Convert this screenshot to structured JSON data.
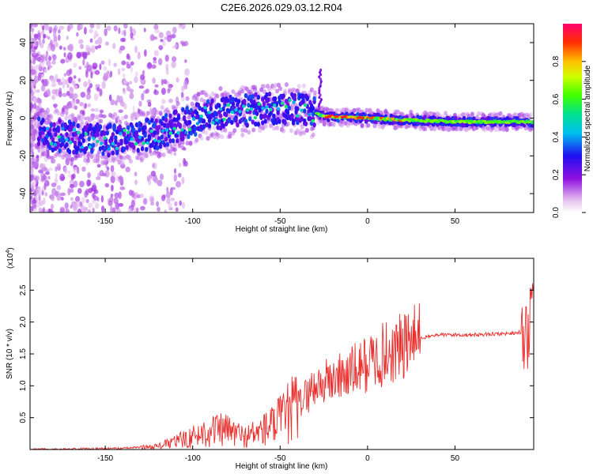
{
  "title": "C2E6.2026.029.03.12.R04",
  "chart_data": [
    {
      "type": "heatmap",
      "xlabel": "Height of straight line (km)",
      "ylabel": "Frequency (Hz)",
      "xlim": [
        -193,
        95
      ],
      "ylim": [
        -50,
        50
      ],
      "xticks": [
        -150,
        -100,
        -50,
        0,
        50
      ],
      "yticks": [
        -40,
        -20,
        0,
        20,
        40
      ],
      "colorbar": {
        "label": "Normalized spectral amplitude",
        "range": [
          0,
          1
        ],
        "ticks": [
          0.0,
          0.2,
          0.4,
          0.6,
          0.8
        ],
        "tick_labels": [
          "0.0",
          "0.2",
          "0.4",
          "0.6",
          "0.8"
        ]
      },
      "ridge": {
        "description_points": [
          {
            "x": -190,
            "y": -8
          },
          {
            "x": -150,
            "y": -12
          },
          {
            "x": -120,
            "y": -8
          },
          {
            "x": -90,
            "y": 2
          },
          {
            "x": -60,
            "y": 5
          },
          {
            "x": -40,
            "y": 5
          },
          {
            "x": -25,
            "y": 1
          },
          {
            "x": 0,
            "y": 0
          },
          {
            "x": 20,
            "y": -1
          },
          {
            "x": 50,
            "y": -2
          },
          {
            "x": 80,
            "y": -2
          },
          {
            "x": 95,
            "y": -2
          }
        ]
      }
    },
    {
      "type": "line",
      "xlabel": "Height of straight line (km)",
      "ylabel": "SNR (10 * v/v)",
      "scale_label": "(x10",
      "scale_exponent": "4",
      "scale_suffix": ")",
      "xlim": [
        -193,
        95
      ],
      "ylim": [
        0,
        3.0
      ],
      "xticks": [
        -150,
        -100,
        -50,
        0,
        50
      ],
      "yticks": [
        0.5,
        1.0,
        1.5,
        2.0,
        2.5
      ],
      "ytick_labels": [
        "0.5",
        "1.0",
        "1.5",
        "2.0",
        "2.5"
      ],
      "series": [
        {
          "name": "SNR",
          "color": "#e8302e",
          "trend": [
            {
              "x": -193,
              "y": 0.0
            },
            {
              "x": -140,
              "y": 0.02
            },
            {
              "x": -120,
              "y": 0.05
            },
            {
              "x": -100,
              "y": 0.2
            },
            {
              "x": -90,
              "y": 0.3
            },
            {
              "x": -80,
              "y": 0.3
            },
            {
              "x": -70,
              "y": 0.2
            },
            {
              "x": -60,
              "y": 0.3
            },
            {
              "x": -50,
              "y": 0.45
            },
            {
              "x": -40,
              "y": 0.7
            },
            {
              "x": -30,
              "y": 1.0
            },
            {
              "x": -20,
              "y": 1.1
            },
            {
              "x": -10,
              "y": 1.2
            },
            {
              "x": 0,
              "y": 1.35
            },
            {
              "x": 10,
              "y": 1.5
            },
            {
              "x": 20,
              "y": 1.6
            },
            {
              "x": 30,
              "y": 1.75
            },
            {
              "x": 40,
              "y": 1.8
            },
            {
              "x": 60,
              "y": 1.8
            },
            {
              "x": 80,
              "y": 1.82
            },
            {
              "x": 92,
              "y": 1.85
            },
            {
              "x": 95,
              "y": 2.2
            }
          ]
        }
      ]
    }
  ]
}
